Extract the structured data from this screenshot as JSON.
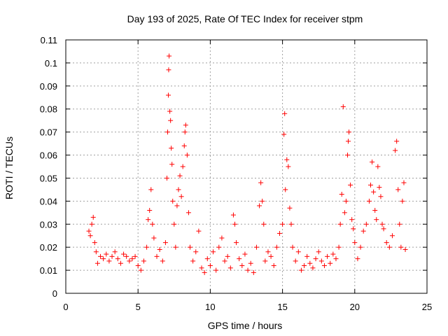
{
  "chart_data": {
    "type": "scatter",
    "title": "Day 193 of 2025, Rate Of TEC Index for receiver stpm",
    "xlabel": "GPS time / hours",
    "ylabel": "ROTI / TECUs",
    "xlim": [
      0,
      25
    ],
    "ylim": [
      0,
      0.11
    ],
    "xticks": [
      0,
      5,
      10,
      15,
      20,
      25
    ],
    "xtick_labels": [
      "0",
      "5",
      "10",
      "15",
      "20",
      "25"
    ],
    "yticks": [
      0,
      0.01,
      0.02,
      0.03,
      0.04,
      0.05,
      0.06,
      0.07,
      0.08,
      0.09,
      0.1,
      0.11
    ],
    "ytick_labels": [
      "0",
      "0.01",
      "0.02",
      "0.03",
      "0.04",
      "0.05",
      "0.06",
      "0.07",
      "0.08",
      "0.09",
      "0.1",
      "0.11"
    ],
    "grid": true,
    "marker": "plus",
    "color": "#ff0000",
    "series": [
      {
        "points": [
          [
            1.6,
            0.027
          ],
          [
            1.7,
            0.025
          ],
          [
            1.8,
            0.03
          ],
          [
            1.9,
            0.033
          ],
          [
            2.0,
            0.022
          ],
          [
            2.1,
            0.018
          ],
          [
            2.2,
            0.013
          ],
          [
            2.4,
            0.016
          ],
          [
            2.6,
            0.015
          ],
          [
            2.8,
            0.017
          ],
          [
            3.0,
            0.014
          ],
          [
            3.2,
            0.016
          ],
          [
            3.4,
            0.018
          ],
          [
            3.6,
            0.015
          ],
          [
            3.8,
            0.013
          ],
          [
            4.0,
            0.017
          ],
          [
            4.2,
            0.016
          ],
          [
            4.4,
            0.014
          ],
          [
            4.6,
            0.015
          ],
          [
            4.8,
            0.016
          ],
          [
            5.0,
            0.012
          ],
          [
            5.2,
            0.01
          ],
          [
            5.4,
            0.014
          ],
          [
            5.6,
            0.02
          ],
          [
            5.7,
            0.032
          ],
          [
            5.8,
            0.036
          ],
          [
            5.9,
            0.045
          ],
          [
            6.0,
            0.03
          ],
          [
            6.1,
            0.024
          ],
          [
            6.3,
            0.016
          ],
          [
            6.5,
            0.019
          ],
          [
            6.7,
            0.014
          ],
          [
            6.9,
            0.022
          ],
          [
            7.0,
            0.05
          ],
          [
            7.05,
            0.07
          ],
          [
            7.1,
            0.086
          ],
          [
            7.12,
            0.097
          ],
          [
            7.15,
            0.103
          ],
          [
            7.2,
            0.079
          ],
          [
            7.25,
            0.075
          ],
          [
            7.3,
            0.063
          ],
          [
            7.35,
            0.056
          ],
          [
            7.4,
            0.04
          ],
          [
            7.5,
            0.03
          ],
          [
            7.6,
            0.02
          ],
          [
            7.7,
            0.038
          ],
          [
            7.8,
            0.045
          ],
          [
            7.9,
            0.051
          ],
          [
            8.0,
            0.042
          ],
          [
            8.1,
            0.055
          ],
          [
            8.2,
            0.064
          ],
          [
            8.25,
            0.07
          ],
          [
            8.3,
            0.073
          ],
          [
            8.4,
            0.06
          ],
          [
            8.5,
            0.035
          ],
          [
            8.6,
            0.02
          ],
          [
            8.8,
            0.014
          ],
          [
            9.0,
            0.018
          ],
          [
            9.2,
            0.027
          ],
          [
            9.4,
            0.011
          ],
          [
            9.6,
            0.009
          ],
          [
            9.8,
            0.015
          ],
          [
            10.0,
            0.012
          ],
          [
            10.2,
            0.018
          ],
          [
            10.4,
            0.01
          ],
          [
            10.6,
            0.02
          ],
          [
            10.8,
            0.024
          ],
          [
            11.0,
            0.014
          ],
          [
            11.2,
            0.016
          ],
          [
            11.4,
            0.011
          ],
          [
            11.6,
            0.034
          ],
          [
            11.7,
            0.03
          ],
          [
            11.8,
            0.022
          ],
          [
            12.0,
            0.015
          ],
          [
            12.2,
            0.012
          ],
          [
            12.4,
            0.017
          ],
          [
            12.6,
            0.01
          ],
          [
            12.8,
            0.013
          ],
          [
            13.0,
            0.009
          ],
          [
            13.2,
            0.02
          ],
          [
            13.4,
            0.038
          ],
          [
            13.5,
            0.048
          ],
          [
            13.6,
            0.04
          ],
          [
            13.7,
            0.03
          ],
          [
            13.8,
            0.014
          ],
          [
            14.0,
            0.018
          ],
          [
            14.2,
            0.016
          ],
          [
            14.4,
            0.012
          ],
          [
            14.6,
            0.02
          ],
          [
            14.8,
            0.026
          ],
          [
            15.0,
            0.03
          ],
          [
            15.1,
            0.069
          ],
          [
            15.15,
            0.078
          ],
          [
            15.2,
            0.045
          ],
          [
            15.3,
            0.058
          ],
          [
            15.4,
            0.055
          ],
          [
            15.5,
            0.037
          ],
          [
            15.6,
            0.03
          ],
          [
            15.7,
            0.02
          ],
          [
            15.9,
            0.014
          ],
          [
            16.1,
            0.018
          ],
          [
            16.3,
            0.01
          ],
          [
            16.5,
            0.012
          ],
          [
            16.7,
            0.016
          ],
          [
            16.9,
            0.013
          ],
          [
            17.1,
            0.011
          ],
          [
            17.3,
            0.015
          ],
          [
            17.5,
            0.018
          ],
          [
            17.7,
            0.014
          ],
          [
            17.9,
            0.012
          ],
          [
            18.1,
            0.016
          ],
          [
            18.3,
            0.013
          ],
          [
            18.5,
            0.017
          ],
          [
            18.7,
            0.015
          ],
          [
            18.9,
            0.02
          ],
          [
            19.0,
            0.03
          ],
          [
            19.1,
            0.043
          ],
          [
            19.2,
            0.081
          ],
          [
            19.3,
            0.035
          ],
          [
            19.4,
            0.04
          ],
          [
            19.5,
            0.06
          ],
          [
            19.55,
            0.066
          ],
          [
            19.6,
            0.07
          ],
          [
            19.7,
            0.047
          ],
          [
            19.8,
            0.032
          ],
          [
            19.9,
            0.028
          ],
          [
            20.0,
            0.022
          ],
          [
            20.2,
            0.015
          ],
          [
            20.4,
            0.02
          ],
          [
            20.6,
            0.027
          ],
          [
            20.8,
            0.03
          ],
          [
            21.0,
            0.04
          ],
          [
            21.1,
            0.047
          ],
          [
            21.2,
            0.057
          ],
          [
            21.3,
            0.044
          ],
          [
            21.4,
            0.036
          ],
          [
            21.5,
            0.032
          ],
          [
            21.6,
            0.055
          ],
          [
            21.7,
            0.046
          ],
          [
            21.8,
            0.042
          ],
          [
            21.9,
            0.03
          ],
          [
            22.0,
            0.028
          ],
          [
            22.2,
            0.022
          ],
          [
            22.4,
            0.02
          ],
          [
            22.6,
            0.025
          ],
          [
            22.8,
            0.062
          ],
          [
            22.9,
            0.066
          ],
          [
            23.0,
            0.045
          ],
          [
            23.1,
            0.03
          ],
          [
            23.2,
            0.02
          ],
          [
            23.3,
            0.04
          ],
          [
            23.4,
            0.048
          ],
          [
            23.5,
            0.019
          ]
        ]
      }
    ]
  }
}
